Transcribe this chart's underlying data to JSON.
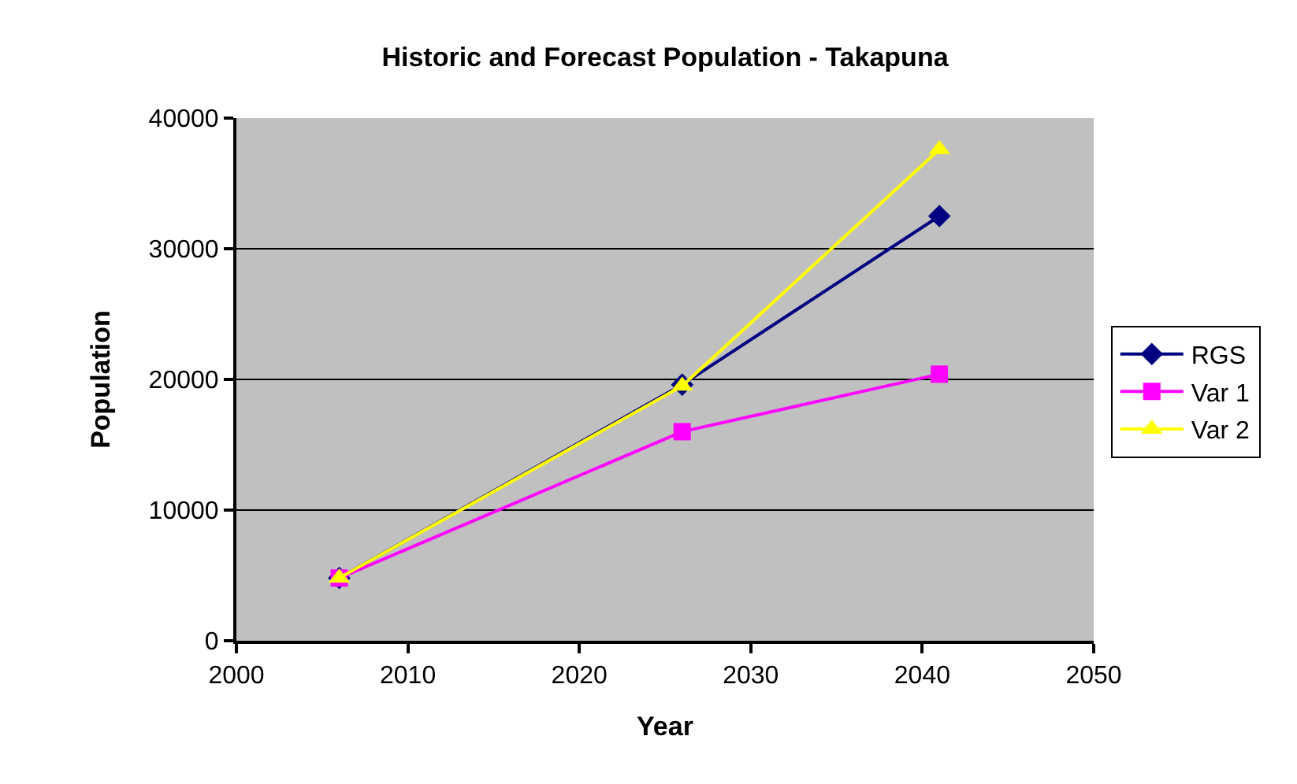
{
  "chart_data": {
    "type": "line",
    "title": "Historic and Forecast Population - Takapuna",
    "xlabel": "Year",
    "ylabel": "Population",
    "x": [
      2006,
      2026,
      2041
    ],
    "series": [
      {
        "name": "RGS",
        "color": "#000080",
        "marker": "diamond",
        "values": [
          4800,
          19600,
          32500
        ]
      },
      {
        "name": "Var 1",
        "color": "#ff00ff",
        "marker": "square",
        "values": [
          4800,
          16000,
          20400
        ]
      },
      {
        "name": "Var 2",
        "color": "#ffff00",
        "marker": "triangle",
        "values": [
          4800,
          19500,
          37600
        ]
      }
    ],
    "xlim": [
      2000,
      2050
    ],
    "xticks": [
      2000,
      2010,
      2020,
      2030,
      2040,
      2050
    ],
    "ylim": [
      0,
      40000
    ],
    "yticks": [
      0,
      10000,
      20000,
      30000,
      40000
    ],
    "grid": "y",
    "legend": "right",
    "line_style": "solid"
  }
}
